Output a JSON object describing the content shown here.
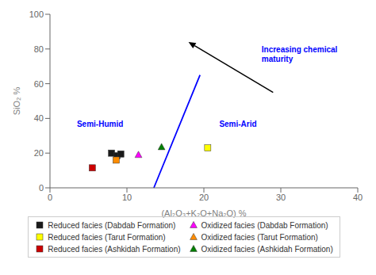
{
  "chart_data": {
    "type": "scatter",
    "xlabel": "(Al₂O₃+K₂O+Na₂O) %",
    "ylabel": "SiO₂ %",
    "xlim": [
      0,
      40
    ],
    "ylim": [
      0,
      100
    ],
    "xticks": [
      0,
      10,
      20,
      30,
      40
    ],
    "yticks": [
      0,
      20,
      40,
      60,
      80,
      100
    ],
    "grid": false,
    "points": [
      {
        "x": 8.0,
        "y": 20.0,
        "marker": "square",
        "color": "#1a1a1a"
      },
      {
        "x": 8.7,
        "y": 18.5,
        "marker": "square",
        "color": "#1a1a1a"
      },
      {
        "x": 9.2,
        "y": 19.5,
        "marker": "square",
        "color": "#1a1a1a"
      },
      {
        "x": 8.6,
        "y": 16.0,
        "marker": "square",
        "color": "#ff8c00"
      },
      {
        "x": 11.5,
        "y": 19.0,
        "marker": "triangle",
        "color": "#ff00ff"
      },
      {
        "x": 20.5,
        "y": 23.0,
        "marker": "square",
        "color": "#ffff00"
      },
      {
        "x": 14.5,
        "y": 23.5,
        "marker": "triangle",
        "color": "#008000"
      },
      {
        "x": 5.5,
        "y": 11.5,
        "marker": "square",
        "color": "#cc0000"
      }
    ],
    "lines": [
      {
        "x": [
          13.5,
          19.5
        ],
        "y": [
          0,
          65
        ],
        "color": "blue"
      }
    ],
    "annotations": [
      {
        "text": "Semi-Humid",
        "x": 3.5,
        "y": 37,
        "color": "blue"
      },
      {
        "text": "Semi-Arid",
        "x": 22,
        "y": 37,
        "color": "blue"
      },
      {
        "text": "Increasing chemical\nmaturity",
        "x": 27.5,
        "y": 82,
        "color": "blue"
      },
      {
        "arrow_from": [
          29,
          55
        ],
        "arrow_to": [
          18,
          84
        ],
        "color": "black"
      }
    ],
    "legend_entries": [
      {
        "name": "Reduced facies (Dabdab Formation)",
        "marker": "square",
        "color": "#1a1a1a"
      },
      {
        "name": "Oxidized facies (Dabdab Formation)",
        "marker": "triangle",
        "color": "#ff00ff"
      },
      {
        "name": "Reduced facies (Tarut Formation)",
        "marker": "square",
        "color": "#ffff00"
      },
      {
        "name": "Oxidized facies (Tarut Formation)",
        "marker": "triangle",
        "color": "#ff8c00"
      },
      {
        "name": "Reduced facies (Ashkidah Formation)",
        "marker": "square",
        "color": "#cc0000"
      },
      {
        "name": "Oxidized facies (Ashkidah Formation)",
        "marker": "triangle",
        "color": "#008000"
      }
    ]
  }
}
